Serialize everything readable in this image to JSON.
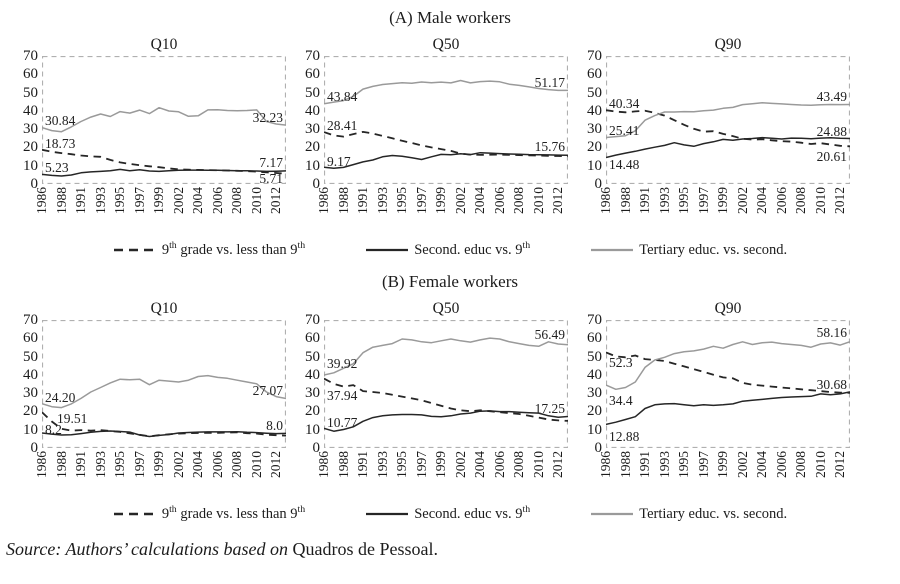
{
  "groups": [
    {
      "id": "male",
      "title": "(A) Male workers",
      "panel_indexes": [
        0,
        1,
        2
      ]
    },
    {
      "id": "female",
      "title": "(B) Female workers",
      "panel_indexes": [
        3,
        4,
        5
      ]
    }
  ],
  "legend": {
    "items": [
      {
        "label": "9^{th} grade vs. less than 9^{th}",
        "style": "dashed",
        "color": "#262626"
      },
      {
        "label": "Second. educ vs. 9^{th}",
        "style": "solid",
        "color": "#262626"
      },
      {
        "label": "Tertiary educ. vs. second.",
        "style": "gray",
        "color": "#9a9a9a"
      }
    ]
  },
  "axes": {
    "y_ticks": [
      "70",
      "60",
      "50",
      "40",
      "30",
      "20",
      "10",
      "0"
    ],
    "y_max": 70,
    "x_ticks": [
      "1986",
      "1988",
      "1991",
      "1993",
      "1995",
      "1997",
      "1999",
      "2002",
      "2004",
      "2006",
      "2008",
      "2010",
      "2012"
    ]
  },
  "colors": {
    "line_black": "#262626",
    "line_gray": "#9a9a9a",
    "plot_border": "#b0b0b0"
  },
  "source": {
    "italic": "Source: Authors’ calculations based on",
    "regular": " Quadros de Pessoal."
  },
  "chart_data": [
    {
      "group": "(A) Male workers",
      "title": "Q10",
      "type": "line",
      "ylim": [
        0,
        70
      ],
      "x": [
        1986,
        1987,
        1988,
        1989,
        1991,
        1992,
        1993,
        1994,
        1995,
        1996,
        1997,
        1998,
        1999,
        2000,
        2002,
        2003,
        2004,
        2005,
        2006,
        2007,
        2008,
        2009,
        2010,
        2011,
        2012,
        2013
      ],
      "series": [
        {
          "name": "9th grade vs. less than 9th",
          "style": "dashed",
          "values": [
            18.73,
            17.6,
            16.9,
            16.3,
            15.6,
            15.1,
            14.9,
            13.2,
            11.8,
            11.0,
            10.3,
            9.7,
            9.2,
            8.6,
            8.0,
            7.8,
            7.7,
            7.6,
            7.5,
            7.4,
            7.2,
            7.0,
            6.8,
            6.4,
            6.0,
            5.71
          ]
        },
        {
          "name": "Second. educ vs. 9th",
          "style": "solid",
          "values": [
            5.23,
            4.7,
            4.4,
            4.9,
            6.1,
            6.6,
            6.9,
            7.2,
            8.0,
            7.2,
            7.8,
            7.1,
            6.9,
            7.3,
            7.5,
            7.6,
            7.6,
            7.5,
            7.5,
            7.4,
            7.3,
            7.2,
            7.1,
            6.9,
            7.0,
            7.17
          ]
        },
        {
          "name": "Tertiary educ. vs. second.",
          "style": "gray",
          "values": [
            30.84,
            29.2,
            28.6,
            31.2,
            34.2,
            36.6,
            38.3,
            36.9,
            39.6,
            38.8,
            40.4,
            38.5,
            41.7,
            39.9,
            39.5,
            37.0,
            37.3,
            40.5,
            40.6,
            40.2,
            40.1,
            40.2,
            40.5,
            34.2,
            32.8,
            32.23
          ]
        }
      ],
      "point_labels": [
        {
          "text": "30.84",
          "side": "start",
          "y": 34.5
        },
        {
          "text": "18.73",
          "side": "start",
          "y": 22.0
        },
        {
          "text": "5.23",
          "side": "start",
          "y": 9.0
        },
        {
          "text": "32.23",
          "side": "end",
          "y": 36.0
        },
        {
          "text": "7.17",
          "side": "end",
          "y": 11.5
        },
        {
          "text": "5.71",
          "side": "end",
          "y": 3.0
        }
      ]
    },
    {
      "group": "(A) Male workers",
      "title": "Q50",
      "type": "line",
      "ylim": [
        0,
        70
      ],
      "x": [
        1986,
        1987,
        1988,
        1989,
        1991,
        1992,
        1993,
        1994,
        1995,
        1996,
        1997,
        1998,
        1999,
        2000,
        2002,
        2003,
        2004,
        2005,
        2006,
        2007,
        2008,
        2009,
        2010,
        2011,
        2012,
        2013
      ],
      "series": [
        {
          "name": "9th grade vs. less than 9th",
          "style": "dashed",
          "values": [
            28.41,
            26.6,
            25.9,
            27.3,
            28.5,
            27.6,
            26.3,
            25.0,
            23.6,
            22.4,
            21.1,
            20.0,
            19.1,
            18.1,
            16.6,
            16.1,
            15.9,
            16.0,
            16.1,
            15.9,
            15.8,
            15.7,
            15.6,
            15.4,
            15.3,
            15.2
          ]
        },
        {
          "name": "Second. educ vs. 9th",
          "style": "solid",
          "values": [
            9.17,
            8.6,
            9.1,
            10.6,
            12.1,
            13.1,
            14.9,
            15.6,
            15.2,
            14.4,
            13.4,
            14.9,
            16.2,
            16.0,
            16.5,
            16.1,
            17.1,
            16.9,
            16.6,
            16.4,
            16.3,
            16.1,
            16.0,
            15.9,
            15.8,
            15.76
          ]
        },
        {
          "name": "Tertiary educ. vs. second.",
          "style": "gray",
          "values": [
            43.84,
            44.8,
            45.6,
            47.9,
            51.9,
            53.4,
            54.4,
            54.9,
            55.4,
            55.1,
            55.8,
            55.4,
            55.7,
            55.3,
            56.6,
            55.3,
            56.0,
            56.3,
            55.9,
            54.6,
            53.9,
            53.1,
            52.2,
            51.6,
            51.2,
            51.17
          ]
        }
      ],
      "point_labels": [
        {
          "text": "43.84",
          "side": "start",
          "y": 47.5
        },
        {
          "text": "28.41",
          "side": "start",
          "y": 31.5
        },
        {
          "text": "9.17",
          "side": "start",
          "y": 12.0
        },
        {
          "text": "51.17",
          "side": "end",
          "y": 55.5
        },
        {
          "text": "15.76",
          "side": "end",
          "y": 20.0
        }
      ]
    },
    {
      "group": "(A) Male workers",
      "title": "Q90",
      "type": "line",
      "ylim": [
        0,
        70
      ],
      "x": [
        1986,
        1987,
        1988,
        1989,
        1991,
        1992,
        1993,
        1994,
        1995,
        1996,
        1997,
        1998,
        1999,
        2000,
        2002,
        2003,
        2004,
        2005,
        2006,
        2007,
        2008,
        2009,
        2010,
        2011,
        2012,
        2013
      ],
      "series": [
        {
          "name": "9th grade vs. less than 9th",
          "style": "dashed",
          "values": [
            40.34,
            39.6,
            39.2,
            39.7,
            40.1,
            38.9,
            37.4,
            34.9,
            32.4,
            30.2,
            28.6,
            28.9,
            27.4,
            26.2,
            24.7,
            24.3,
            24.5,
            23.9,
            23.4,
            23.2,
            22.6,
            21.9,
            22.3,
            21.6,
            20.9,
            20.61
          ]
        },
        {
          "name": "Second. educ vs. 9th",
          "style": "solid",
          "values": [
            14.48,
            15.8,
            16.9,
            17.9,
            19.1,
            20.1,
            21.1,
            22.6,
            21.4,
            20.6,
            22.1,
            23.1,
            24.4,
            23.9,
            24.6,
            24.9,
            25.4,
            25.0,
            24.6,
            25.1,
            25.0,
            24.8,
            25.1,
            25.3,
            25.0,
            24.88
          ]
        },
        {
          "name": "Tertiary educ. vs. second.",
          "style": "gray",
          "values": [
            25.41,
            25.9,
            26.4,
            29.1,
            34.9,
            37.4,
            39.4,
            39.4,
            39.6,
            39.5,
            40.1,
            40.4,
            41.4,
            41.9,
            43.4,
            43.9,
            44.4,
            44.1,
            43.8,
            43.5,
            43.2,
            43.1,
            43.3,
            43.5,
            43.4,
            43.49
          ]
        }
      ],
      "point_labels": [
        {
          "text": "40.34",
          "side": "start",
          "y": 43.5
        },
        {
          "text": "25.41",
          "side": "start",
          "y": 29.0
        },
        {
          "text": "14.48",
          "side": "start",
          "y": 10.5
        },
        {
          "text": "43.49",
          "side": "end",
          "y": 47.5
        },
        {
          "text": "24.88",
          "side": "end",
          "y": 28.5
        },
        {
          "text": "20.61",
          "side": "end",
          "y": 14.5
        }
      ]
    },
    {
      "group": "(B) Female workers",
      "title": "Q10",
      "type": "line",
      "ylim": [
        0,
        70
      ],
      "x": [
        1986,
        1987,
        1988,
        1989,
        1991,
        1992,
        1993,
        1994,
        1995,
        1996,
        1997,
        1998,
        1999,
        2000,
        2002,
        2003,
        2004,
        2005,
        2006,
        2007,
        2008,
        2009,
        2010,
        2011,
        2012,
        2013
      ],
      "series": [
        {
          "name": "9th grade vs. less than 9th",
          "style": "dashed",
          "values": [
            19.51,
            14.5,
            10.5,
            9.5,
            9.8,
            9.5,
            9.8,
            9.3,
            8.8,
            8.0,
            7.2,
            6.4,
            7.0,
            7.5,
            7.9,
            8.1,
            8.2,
            8.3,
            8.3,
            8.4,
            8.6,
            8.1,
            7.9,
            7.3,
            7.0,
            6.8
          ]
        },
        {
          "name": "Second. educ vs. 9th",
          "style": "solid",
          "values": [
            8.2,
            7.6,
            7.1,
            7.3,
            7.9,
            8.6,
            9.1,
            9.3,
            9.0,
            8.7,
            7.1,
            6.3,
            6.9,
            7.4,
            8.2,
            8.5,
            8.7,
            8.8,
            8.8,
            8.8,
            8.9,
            8.6,
            8.4,
            8.1,
            7.9,
            8.0
          ]
        },
        {
          "name": "Tertiary educ. vs. second.",
          "style": "gray",
          "values": [
            24.2,
            22.6,
            22.1,
            24.1,
            27.1,
            30.6,
            33.1,
            35.6,
            37.6,
            37.3,
            37.6,
            34.6,
            37.1,
            36.6,
            36.1,
            37.1,
            39.1,
            39.6,
            38.6,
            38.1,
            37.1,
            36.1,
            35.1,
            30.6,
            28.1,
            27.07
          ]
        }
      ],
      "point_labels": [
        {
          "text": "24.20",
          "side": "start",
          "y": 27.5
        },
        {
          "text": "19.51",
          "side": "start",
          "y": 16.0,
          "dx": 12
        },
        {
          "text": "8.2",
          "side": "start",
          "y": 10.0
        },
        {
          "text": "27.07",
          "side": "end",
          "y": 31.0
        },
        {
          "text": "8.0",
          "side": "end",
          "y": 12.0
        }
      ]
    },
    {
      "group": "(B) Female workers",
      "title": "Q50",
      "type": "line",
      "ylim": [
        0,
        70
      ],
      "x": [
        1986,
        1987,
        1988,
        1989,
        1991,
        1992,
        1993,
        1994,
        1995,
        1996,
        1997,
        1998,
        1999,
        2000,
        2002,
        2003,
        2004,
        2005,
        2006,
        2007,
        2008,
        2009,
        2010,
        2011,
        2012,
        2013
      ],
      "series": [
        {
          "name": "9th grade vs. less than 9th",
          "style": "dashed",
          "values": [
            37.94,
            35.1,
            33.6,
            34.4,
            31.1,
            30.6,
            30.1,
            29.1,
            28.1,
            27.1,
            26.1,
            24.6,
            23.1,
            21.6,
            20.6,
            20.1,
            20.6,
            20.1,
            19.6,
            19.1,
            18.6,
            17.6,
            16.6,
            15.6,
            15.1,
            14.8
          ]
        },
        {
          "name": "Second. educ vs. 9th",
          "style": "solid",
          "values": [
            10.77,
            9.2,
            10.1,
            11.6,
            14.6,
            16.6,
            17.6,
            18.1,
            18.3,
            18.3,
            18.1,
            17.3,
            17.1,
            17.6,
            18.6,
            19.1,
            20.1,
            20.3,
            19.9,
            19.9,
            19.6,
            19.3,
            19.1,
            17.6,
            16.8,
            17.25
          ]
        },
        {
          "name": "Tertiary educ. vs. second.",
          "style": "gray",
          "values": [
            39.92,
            41.1,
            43.6,
            46.1,
            52.1,
            55.1,
            56.1,
            57.1,
            59.6,
            59.1,
            58.1,
            57.6,
            58.6,
            59.6,
            58.6,
            57.9,
            59.1,
            60.1,
            59.6,
            58.1,
            57.1,
            56.1,
            55.6,
            58.1,
            56.9,
            56.49
          ]
        }
      ],
      "point_labels": [
        {
          "text": "39.92",
          "side": "start",
          "y": 46.0
        },
        {
          "text": "37.94",
          "side": "start",
          "y": 28.5
        },
        {
          "text": "10.77",
          "side": "start",
          "y": 13.5
        },
        {
          "text": "56.49",
          "side": "end",
          "y": 62.0
        },
        {
          "text": "17.25",
          "side": "end",
          "y": 21.5
        }
      ]
    },
    {
      "group": "(B) Female workers",
      "title": "Q90",
      "type": "line",
      "ylim": [
        0,
        70
      ],
      "x": [
        1986,
        1987,
        1988,
        1989,
        1991,
        1992,
        1993,
        1994,
        1995,
        1996,
        1997,
        1998,
        1999,
        2000,
        2002,
        2003,
        2004,
        2005,
        2006,
        2007,
        2008,
        2009,
        2010,
        2011,
        2012,
        2013
      ],
      "series": [
        {
          "name": "9th grade vs. less than 9th",
          "style": "dashed",
          "values": [
            52.3,
            50.1,
            49.6,
            50.6,
            48.6,
            48.1,
            47.6,
            46.1,
            44.6,
            43.1,
            41.6,
            40.1,
            38.6,
            38.1,
            35.6,
            34.6,
            34.1,
            33.6,
            33.1,
            32.6,
            32.1,
            31.6,
            31.1,
            30.6,
            30.3,
            30.2
          ]
        },
        {
          "name": "Second. educ vs. 9th",
          "style": "solid",
          "values": [
            12.88,
            14.1,
            15.6,
            17.1,
            21.6,
            23.6,
            24.1,
            24.3,
            23.6,
            23.1,
            23.6,
            23.3,
            23.6,
            24.1,
            25.6,
            26.1,
            26.6,
            27.1,
            27.6,
            27.9,
            28.1,
            28.3,
            29.6,
            29.1,
            29.6,
            30.68
          ]
        },
        {
          "name": "Tertiary educ. vs. second.",
          "style": "gray",
          "values": [
            34.4,
            32.1,
            33.1,
            36.1,
            44.1,
            48.1,
            49.6,
            51.6,
            52.6,
            53.1,
            54.1,
            55.6,
            54.6,
            56.6,
            58.1,
            56.6,
            57.6,
            57.9,
            57.1,
            56.6,
            56.1,
            55.1,
            56.9,
            57.5,
            56.3,
            58.16
          ]
        }
      ],
      "point_labels": [
        {
          "text": "52.3",
          "side": "start",
          "y": 46.5
        },
        {
          "text": "34.4",
          "side": "start",
          "y": 25.5
        },
        {
          "text": "12.88",
          "side": "start",
          "y": 6.0
        },
        {
          "text": "58.16",
          "side": "end",
          "y": 63.0
        },
        {
          "text": "30.68",
          "side": "end",
          "y": 34.5
        }
      ]
    }
  ]
}
